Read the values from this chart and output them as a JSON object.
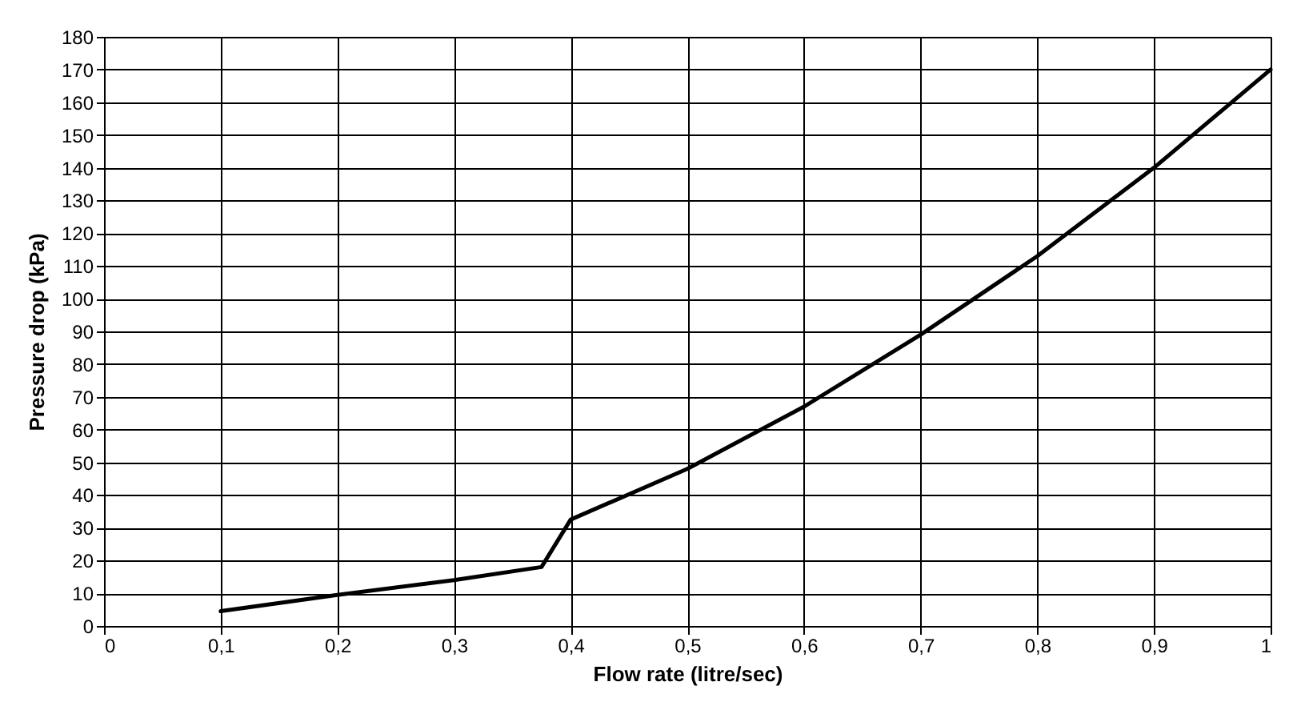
{
  "chart_data": {
    "type": "line",
    "xlabel": "Flow rate (litre/sec)",
    "ylabel": "Pressure drop (kPa)",
    "x": [
      0.1,
      0.2,
      0.3,
      0.375,
      0.4,
      0.5,
      0.6,
      0.7,
      0.8,
      0.9,
      1.0
    ],
    "series": [
      {
        "color": "#000000",
        "values": [
          4.5,
          9.5,
          14,
          18,
          32.5,
          48,
          67,
          89,
          113,
          140,
          170
        ]
      }
    ],
    "xlim": [
      0,
      1
    ],
    "xticks": [
      0,
      {
        "value": 0.1,
        "label": "0,1"
      },
      {
        "value": 0.2,
        "label": "0,2"
      },
      {
        "value": 0.3,
        "label": "0,3"
      },
      {
        "value": 0.4,
        "label": "0,4"
      },
      {
        "value": 0.5,
        "label": "0,5"
      },
      {
        "value": 0.6,
        "label": "0,6"
      },
      {
        "value": 0.7,
        "label": "0,7"
      },
      {
        "value": 0.8,
        "label": "0,8"
      },
      {
        "value": 0.9,
        "label": "0,9"
      },
      1
    ],
    "ylim": [
      0,
      180
    ],
    "yticks": [
      0,
      10,
      20,
      30,
      40,
      50,
      60,
      70,
      80,
      90,
      100,
      110,
      120,
      130,
      140,
      150,
      160,
      170,
      180
    ],
    "grid": true,
    "marker": "none",
    "line_style": "solid"
  }
}
